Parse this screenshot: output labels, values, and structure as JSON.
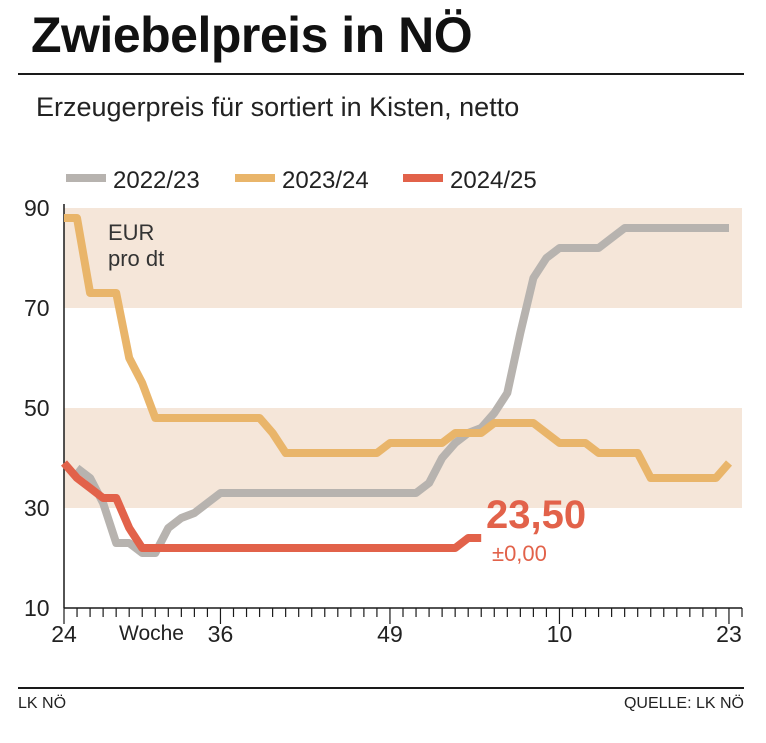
{
  "title": "Zwiebelpreis in NÖ",
  "subtitle": "Erzeugerpreis für sortiert in Kisten, netto",
  "credit": "LK NÖ",
  "source": "QUELLE: LK NÖ",
  "colors": {
    "band": "#f5e6d9",
    "series_2022": "#b7b3af",
    "series_2023": "#e9b56a",
    "series_2024": "#e2624a",
    "axis": "#1a1a1a"
  },
  "chart_data": {
    "type": "line",
    "title": "Zwiebelpreis in NÖ",
    "unit_label": [
      "EUR",
      "pro dt"
    ],
    "xlabel": "Woche",
    "ylabel": "EUR pro dt",
    "ylim": [
      10,
      90
    ],
    "yticks": [
      10,
      30,
      50,
      70,
      90
    ],
    "bands": [
      [
        30,
        50
      ],
      [
        70,
        90
      ]
    ],
    "xlim": [
      0,
      52
    ],
    "xticks": [
      {
        "pos": 0,
        "label": "24"
      },
      {
        "pos": 12,
        "label": "36"
      },
      {
        "pos": 25,
        "label": "49"
      },
      {
        "pos": 38,
        "label": "10"
      },
      {
        "pos": 51,
        "label": "23"
      }
    ],
    "legend": [
      "2022/23",
      "2023/24",
      "2024/25"
    ],
    "series": [
      {
        "name": "2022/23",
        "color_key": "series_2022",
        "points": [
          [
            1,
            38
          ],
          [
            2,
            36
          ],
          [
            3,
            31
          ],
          [
            4,
            23
          ],
          [
            5,
            23
          ],
          [
            6,
            21
          ],
          [
            7,
            21
          ],
          [
            8,
            26
          ],
          [
            9,
            28
          ],
          [
            10,
            29
          ],
          [
            11,
            31
          ],
          [
            12,
            33
          ],
          [
            13,
            33
          ],
          [
            14,
            33
          ],
          [
            15,
            33
          ],
          [
            16,
            33
          ],
          [
            17,
            33
          ],
          [
            18,
            33
          ],
          [
            19,
            33
          ],
          [
            20,
            33
          ],
          [
            21,
            33
          ],
          [
            22,
            33
          ],
          [
            23,
            33
          ],
          [
            24,
            33
          ],
          [
            25,
            33
          ],
          [
            26,
            33
          ],
          [
            27,
            33
          ],
          [
            28,
            35
          ],
          [
            29,
            40
          ],
          [
            30,
            43
          ],
          [
            31,
            45
          ],
          [
            32,
            46
          ],
          [
            33,
            49
          ],
          [
            34,
            53
          ],
          [
            35,
            65
          ],
          [
            36,
            76
          ],
          [
            37,
            80
          ],
          [
            38,
            82
          ],
          [
            39,
            82
          ],
          [
            40,
            82
          ],
          [
            41,
            82
          ],
          [
            42,
            84
          ],
          [
            43,
            86
          ],
          [
            44,
            86
          ],
          [
            45,
            86
          ],
          [
            46,
            86
          ],
          [
            47,
            86
          ],
          [
            48,
            86
          ],
          [
            49,
            86
          ],
          [
            50,
            86
          ],
          [
            51,
            86
          ]
        ]
      },
      {
        "name": "2023/24",
        "color_key": "series_2023",
        "points": [
          [
            0,
            88
          ],
          [
            1,
            88
          ],
          [
            2,
            73
          ],
          [
            3,
            73
          ],
          [
            4,
            73
          ],
          [
            5,
            60
          ],
          [
            6,
            55
          ],
          [
            7,
            48
          ],
          [
            8,
            48
          ],
          [
            9,
            48
          ],
          [
            10,
            48
          ],
          [
            11,
            48
          ],
          [
            12,
            48
          ],
          [
            13,
            48
          ],
          [
            14,
            48
          ],
          [
            15,
            48
          ],
          [
            16,
            45
          ],
          [
            17,
            41
          ],
          [
            18,
            41
          ],
          [
            19,
            41
          ],
          [
            20,
            41
          ],
          [
            21,
            41
          ],
          [
            22,
            41
          ],
          [
            23,
            41
          ],
          [
            24,
            41
          ],
          [
            25,
            43
          ],
          [
            26,
            43
          ],
          [
            27,
            43
          ],
          [
            28,
            43
          ],
          [
            29,
            43
          ],
          [
            30,
            45
          ],
          [
            31,
            45
          ],
          [
            32,
            45
          ],
          [
            33,
            47
          ],
          [
            34,
            47
          ],
          [
            35,
            47
          ],
          [
            36,
            47
          ],
          [
            37,
            45
          ],
          [
            38,
            43
          ],
          [
            39,
            43
          ],
          [
            40,
            43
          ],
          [
            41,
            41
          ],
          [
            42,
            41
          ],
          [
            43,
            41
          ],
          [
            44,
            41
          ],
          [
            45,
            36
          ],
          [
            46,
            36
          ],
          [
            47,
            36
          ],
          [
            48,
            36
          ],
          [
            49,
            36
          ],
          [
            50,
            36
          ],
          [
            51,
            39
          ]
        ]
      },
      {
        "name": "2024/25",
        "color_key": "series_2024",
        "points": [
          [
            0,
            39
          ],
          [
            1,
            36
          ],
          [
            2,
            34
          ],
          [
            3,
            32
          ],
          [
            4,
            32
          ],
          [
            5,
            26
          ],
          [
            6,
            22
          ],
          [
            7,
            22
          ],
          [
            8,
            22
          ],
          [
            9,
            22
          ],
          [
            10,
            22
          ],
          [
            11,
            22
          ],
          [
            12,
            22
          ],
          [
            13,
            22
          ],
          [
            14,
            22
          ],
          [
            15,
            22
          ],
          [
            16,
            22
          ],
          [
            17,
            22
          ],
          [
            18,
            22
          ],
          [
            19,
            22
          ],
          [
            20,
            22
          ],
          [
            21,
            22
          ],
          [
            22,
            22
          ],
          [
            23,
            22
          ],
          [
            24,
            22
          ],
          [
            25,
            22
          ],
          [
            26,
            22
          ],
          [
            27,
            22
          ],
          [
            28,
            22
          ],
          [
            29,
            22
          ],
          [
            30,
            22
          ],
          [
            31,
            24
          ],
          [
            32,
            24
          ]
        ]
      }
    ],
    "annotation": {
      "value": "23,50",
      "change": "±0,00"
    }
  }
}
